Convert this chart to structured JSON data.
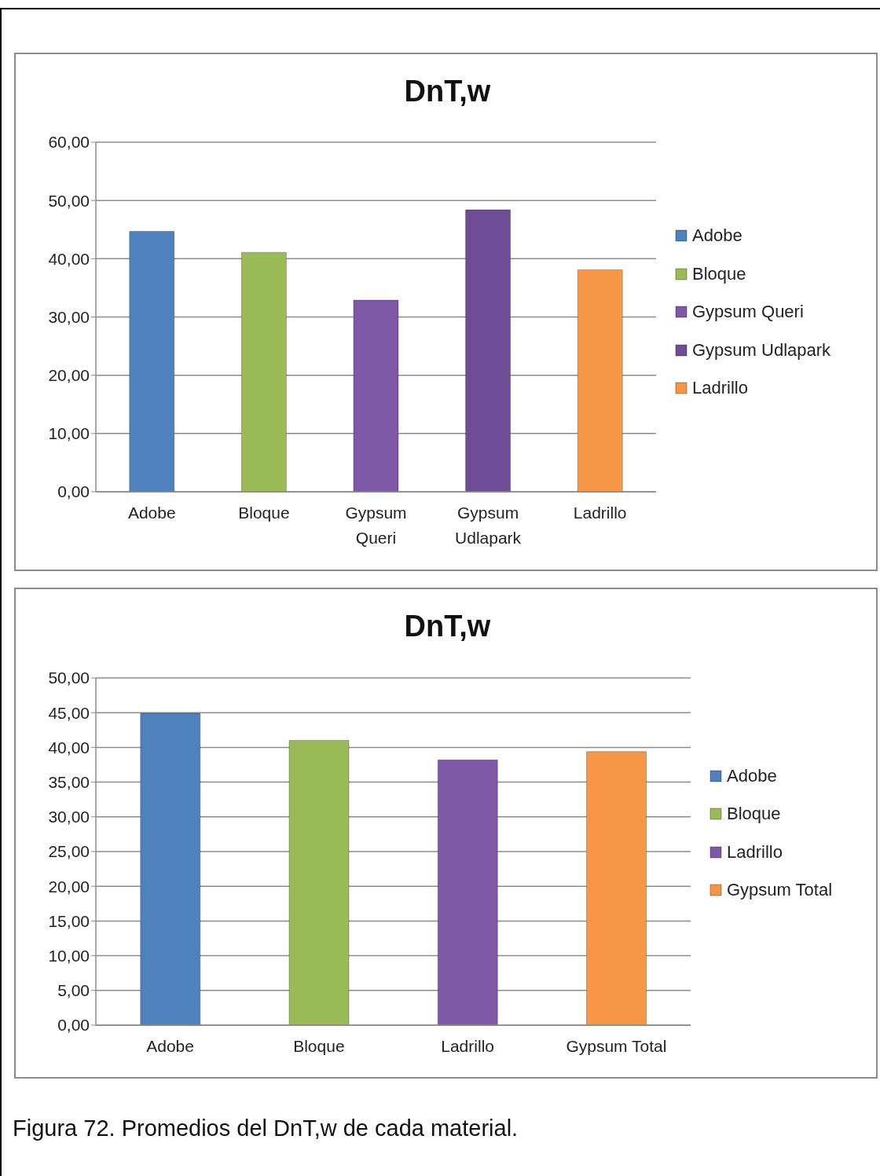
{
  "chart_data": [
    {
      "type": "bar",
      "title": "DnT,w",
      "categories": [
        "Adobe",
        "Bloque",
        "Gypsum Queri",
        "Gypsum Udlapark",
        "Ladrillo"
      ],
      "stacked": true,
      "series": [
        {
          "name": "Adobe",
          "color": "#4f81bd",
          "values": [
            44.7,
            null,
            null,
            null,
            null
          ]
        },
        {
          "name": "Bloque",
          "color": "#9bbb59",
          "values": [
            null,
            41.1,
            null,
            null,
            null
          ]
        },
        {
          "name": "Gypsum Queri",
          "color": "#7e57a5",
          "values": [
            null,
            null,
            32.9,
            null,
            null
          ]
        },
        {
          "name": "Gypsum Udlapark",
          "color": "#6f4d96",
          "values": [
            null,
            null,
            null,
            48.4,
            null
          ]
        },
        {
          "name": "Ladrillo",
          "color": "#f79646",
          "values": [
            null,
            null,
            null,
            null,
            38.1
          ]
        }
      ],
      "ylim": [
        0,
        60
      ],
      "yticks": [
        {
          "value": 0,
          "label": "0,00"
        },
        {
          "value": 10,
          "label": "10,00"
        },
        {
          "value": 20,
          "label": "20,00"
        },
        {
          "value": 30,
          "label": "30,00"
        },
        {
          "value": 40,
          "label": "40,00"
        },
        {
          "value": 50,
          "label": "50,00"
        },
        {
          "value": 60,
          "label": "60,00"
        }
      ],
      "grid": "y",
      "legend": "right"
    },
    {
      "type": "bar",
      "title": "DnT,w",
      "categories": [
        "Adobe",
        "Bloque",
        "Ladrillo",
        "Gypsum Total"
      ],
      "stacked": true,
      "series": [
        {
          "name": "Adobe",
          "color": "#4f81bd",
          "values": [
            44.9,
            null,
            null,
            null
          ]
        },
        {
          "name": "Bloque",
          "color": "#9bbb59",
          "values": [
            null,
            41.0,
            null,
            null
          ]
        },
        {
          "name": "Ladrillo",
          "color": "#7e57a5",
          "values": [
            null,
            null,
            38.2,
            null
          ]
        },
        {
          "name": "Gypsum Total",
          "color": "#f79646",
          "values": [
            null,
            null,
            null,
            39.4
          ]
        }
      ],
      "ylim": [
        0,
        50
      ],
      "yticks": [
        {
          "value": 0,
          "label": "0,00"
        },
        {
          "value": 5,
          "label": "5,00"
        },
        {
          "value": 10,
          "label": "10,00"
        },
        {
          "value": 15,
          "label": "15,00"
        },
        {
          "value": 20,
          "label": "20,00"
        },
        {
          "value": 25,
          "label": "25,00"
        },
        {
          "value": 30,
          "label": "30,00"
        },
        {
          "value": 35,
          "label": "35,00"
        },
        {
          "value": 40,
          "label": "40,00"
        },
        {
          "value": 45,
          "label": "45,00"
        },
        {
          "value": 50,
          "label": "50,00"
        }
      ],
      "grid": "y",
      "legend": "right",
      "annotations": [
        "Figura 72. Promedios del DnT,w de cada material."
      ]
    }
  ]
}
